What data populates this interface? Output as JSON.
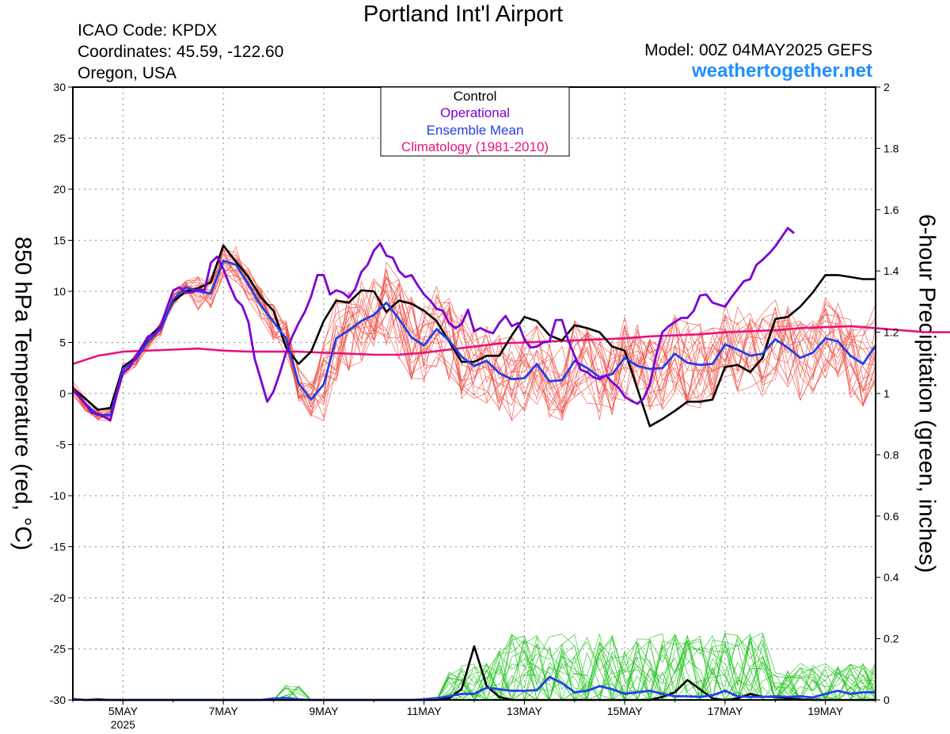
{
  "header": {
    "title": "Portland Int'l Airport",
    "icao": "ICAO Code: KPDX",
    "coordinates": "Coordinates: 45.59, -122.60",
    "region": "Oregon, USA",
    "model": "Model: 00Z 04MAY2025 GEFS",
    "site": "weathertogether.net"
  },
  "colors": {
    "control": "#000000",
    "operational": "#7b00d4",
    "ensemble_mean": "#2340e6",
    "climatology": "#e8127c",
    "members_temp": "#f04a3e",
    "members_precip": "#22c41e",
    "site": "#1e90ff"
  },
  "chart_data": {
    "type": "line",
    "title": "Portland Int'l Airport",
    "ylabel": "850 hPa Temperature (red, °C)",
    "y2label": "6-hour Precipitation (green, inches)",
    "ylim": [
      -30,
      30
    ],
    "y2lim": [
      0,
      2
    ],
    "yticks": [
      30,
      25,
      20,
      15,
      10,
      5,
      0,
      -5,
      -10,
      -15,
      -20,
      -25,
      -30
    ],
    "y2ticks": [
      "2",
      "1.8",
      "1.6",
      "1.4",
      "1.2",
      "1",
      "0.8",
      "0.6",
      "0.4",
      "0.2",
      "0"
    ],
    "xlim": [
      4,
      20
    ],
    "x_unit": "May 2025 (day, 6-hourly steps)",
    "xticks": [
      {
        "x": 5,
        "label": "5MAY",
        "sub": "2025"
      },
      {
        "x": 7,
        "label": "7MAY"
      },
      {
        "x": 9,
        "label": "9MAY"
      },
      {
        "x": 11,
        "label": "11MAY"
      },
      {
        "x": 13,
        "label": "13MAY"
      },
      {
        "x": 15,
        "label": "15MAY"
      },
      {
        "x": 17,
        "label": "17MAY"
      },
      {
        "x": 19,
        "label": "19MAY"
      }
    ],
    "grid": true,
    "legend": {
      "position": "top-center",
      "entries": [
        "Control",
        "Operational",
        "Ensemble Mean",
        "Climatology (1981-2010)"
      ]
    },
    "temp_series": [
      {
        "name": "Control",
        "x_start": 4,
        "x_step": 0.25,
        "values": [
          0.5,
          -0.5,
          -1.6,
          -1.4,
          2.6,
          3.5,
          5.5,
          6.6,
          9.0,
          10.0,
          10.3,
          10.9,
          14.5,
          12.9,
          11.4,
          9.4,
          8.1,
          4.5,
          2.9,
          4.1,
          7.1,
          9.1,
          8.9,
          10.1,
          10.0,
          8.0,
          9.1,
          8.8,
          8.1,
          7.1,
          5.1,
          3.1,
          3.1,
          3.7,
          3.7,
          5.7,
          7.5,
          7.1,
          5.7,
          5.2,
          6.7,
          6.4,
          6.0,
          4.6,
          4.2,
          0.5,
          -3.2,
          -2.5,
          -1.7,
          -0.8,
          -0.8,
          -0.6,
          2.6,
          2.8,
          2.1,
          3.5,
          7.3,
          7.5,
          8.5,
          9.9,
          11.6,
          11.6,
          11.4,
          11.2,
          11.2
        ]
      },
      {
        "name": "Operational",
        "x_start": 4,
        "x_step": 0.125,
        "values": [
          0.4,
          -0.3,
          -1.0,
          -1.9,
          -2.0,
          -2.3,
          -2.6,
          0.0,
          2.0,
          2.5,
          3.6,
          4.6,
          5.6,
          5.8,
          6.6,
          8.4,
          10.1,
          10.4,
          9.9,
          9.9,
          10.2,
          10.1,
          12.8,
          13.4,
          12.2,
          10.6,
          9.2,
          8.6,
          7.0,
          3.4,
          1.3,
          -0.8,
          0.2,
          2.0,
          4.0,
          5.6,
          6.9,
          8.0,
          9.5,
          11.6,
          11.6,
          9.7,
          10.1,
          9.9,
          9.4,
          10.2,
          11.9,
          12.6,
          14.0,
          14.7,
          13.5,
          13.3,
          12.0,
          11.4,
          11.6,
          10.6,
          9.7,
          9.1,
          8.3,
          8.1,
          6.9,
          6.4,
          6.8,
          8.2,
          6.1,
          6.4,
          6.1,
          5.9,
          6.9,
          7.6,
          6.6,
          6.9,
          5.3,
          4.5,
          4.6,
          5.0,
          5.1,
          7.2,
          7.2,
          5.2,
          3.7,
          2.3,
          2.1,
          1.6,
          1.4,
          1.8,
          1.1,
          0.6,
          -0.3,
          -0.7,
          -1.0,
          -0.5,
          0.9,
          3.7,
          6.0,
          6.6,
          7.0,
          7.4,
          7.4,
          8.1,
          9.6,
          9.7,
          8.9,
          8.7,
          8.5,
          9.4,
          10.2,
          11.0,
          11.2,
          12.6,
          13.1,
          13.7,
          14.4,
          15.3,
          16.2,
          15.7
        ]
      },
      {
        "name": "Ensemble Mean",
        "x_start": 4,
        "x_step": 0.25,
        "values": [
          0.5,
          -1.0,
          -2.1,
          -2.1,
          2.4,
          3.3,
          5.1,
          6.3,
          9.2,
          10.4,
          10.0,
          9.8,
          13.0,
          12.6,
          10.7,
          8.6,
          7.0,
          5.4,
          1.0,
          -0.6,
          0.9,
          5.4,
          6.2,
          7.1,
          7.7,
          8.9,
          7.3,
          5.5,
          4.7,
          6.3,
          5.2,
          3.6,
          2.7,
          3.2,
          2.0,
          1.4,
          1.5,
          2.9,
          1.2,
          1.3,
          3.2,
          2.5,
          1.6,
          1.9,
          3.5,
          2.7,
          2.4,
          2.5,
          3.9,
          3.0,
          2.8,
          2.9,
          4.8,
          4.3,
          3.7,
          3.9,
          5.3,
          4.5,
          3.5,
          4.0,
          5.4,
          5.1,
          3.7,
          2.9,
          4.7
        ]
      },
      {
        "name": "Climatology (1981-2010)",
        "x_start": 4,
        "x_step": 0.5,
        "values": [
          2.9,
          3.7,
          4.1,
          4.2,
          4.3,
          4.4,
          4.2,
          4.1,
          4.1,
          4.1,
          4.0,
          3.9,
          3.8,
          3.8,
          4.0,
          4.3,
          4.6,
          4.9,
          5.0,
          5.1,
          5.2,
          5.3,
          5.4,
          5.6,
          5.7,
          5.8,
          6.0,
          6.1,
          6.2,
          6.4,
          6.5,
          6.6,
          6.4,
          6.2,
          6.0,
          6.0,
          6.0,
          5.8,
          5.6
        ]
      }
    ],
    "precip_series": [
      {
        "name": "Control",
        "x_start": 4,
        "x_step": 0.25,
        "values": [
          0.002,
          0,
          0.002,
          0,
          0,
          0,
          0,
          0,
          0,
          0,
          0,
          0,
          0,
          0,
          0,
          0,
          0,
          0,
          0,
          0,
          0,
          0,
          0,
          0,
          0,
          0,
          0,
          0,
          0,
          0,
          0.005,
          0.036,
          0.175,
          0.045,
          0.01,
          0,
          0,
          0,
          0,
          0,
          0,
          0,
          0,
          0,
          0,
          0,
          0,
          0.01,
          0.025,
          0.065,
          0.035,
          0.005,
          0,
          0.005,
          0.02,
          0.01,
          0.01,
          0.005,
          0.002,
          0,
          0,
          0,
          0,
          0,
          0
        ]
      },
      {
        "name": "Ensemble Mean",
        "x_start": 4,
        "x_step": 0.25,
        "values": [
          0.003,
          0,
          0,
          0,
          0,
          0,
          0,
          0,
          0,
          0,
          0,
          0,
          0,
          0,
          0,
          0,
          0.005,
          0.006,
          0.002,
          0,
          0,
          0,
          0,
          0,
          0,
          0,
          0,
          0,
          0.002,
          0.006,
          0.012,
          0.02,
          0.02,
          0.04,
          0.035,
          0.03,
          0.03,
          0.032,
          0.075,
          0.055,
          0.025,
          0.03,
          0.045,
          0.035,
          0.02,
          0.025,
          0.03,
          0.02,
          0.012,
          0.012,
          0.01,
          0.015,
          0.03,
          0.012,
          0.01,
          0.01,
          0.012,
          0.01,
          0.012,
          0.008,
          0.02,
          0.03,
          0.02,
          0.025,
          0.025
        ]
      }
    ],
    "members_temp_count": 20,
    "members_precip_count": 20
  }
}
